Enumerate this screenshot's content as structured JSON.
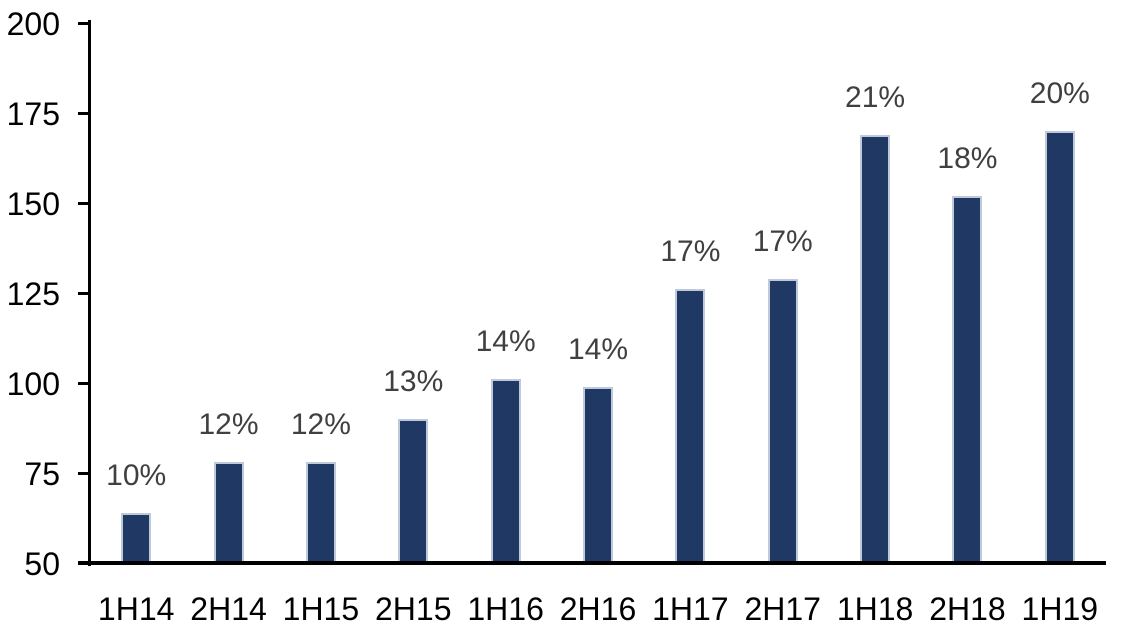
{
  "chart_data": {
    "type": "bar",
    "title": "",
    "xlabel": "",
    "ylabel": "",
    "categories": [
      "1H14",
      "2H14",
      "1H15",
      "2H15",
      "1H16",
      "2H16",
      "1H17",
      "2H17",
      "1H18",
      "2H18",
      "1H19"
    ],
    "values": [
      64,
      78,
      78,
      90,
      101,
      99,
      126,
      129,
      169,
      152,
      170
    ],
    "bar_labels": [
      "10%",
      "12%",
      "12%",
      "13%",
      "14%",
      "14%",
      "17%",
      "17%",
      "21%",
      "18%",
      "20%"
    ],
    "yticks": [
      50,
      75,
      100,
      125,
      150,
      175,
      200
    ],
    "ylim": [
      50,
      200
    ],
    "grid": false,
    "legend": false,
    "colors": {
      "bar_fill": "#1f3864",
      "bar_border": "#bec9da",
      "bar_label": "#404040",
      "axis_text": "#000000",
      "axis_line": "#000000",
      "background": "#ffffff"
    }
  }
}
